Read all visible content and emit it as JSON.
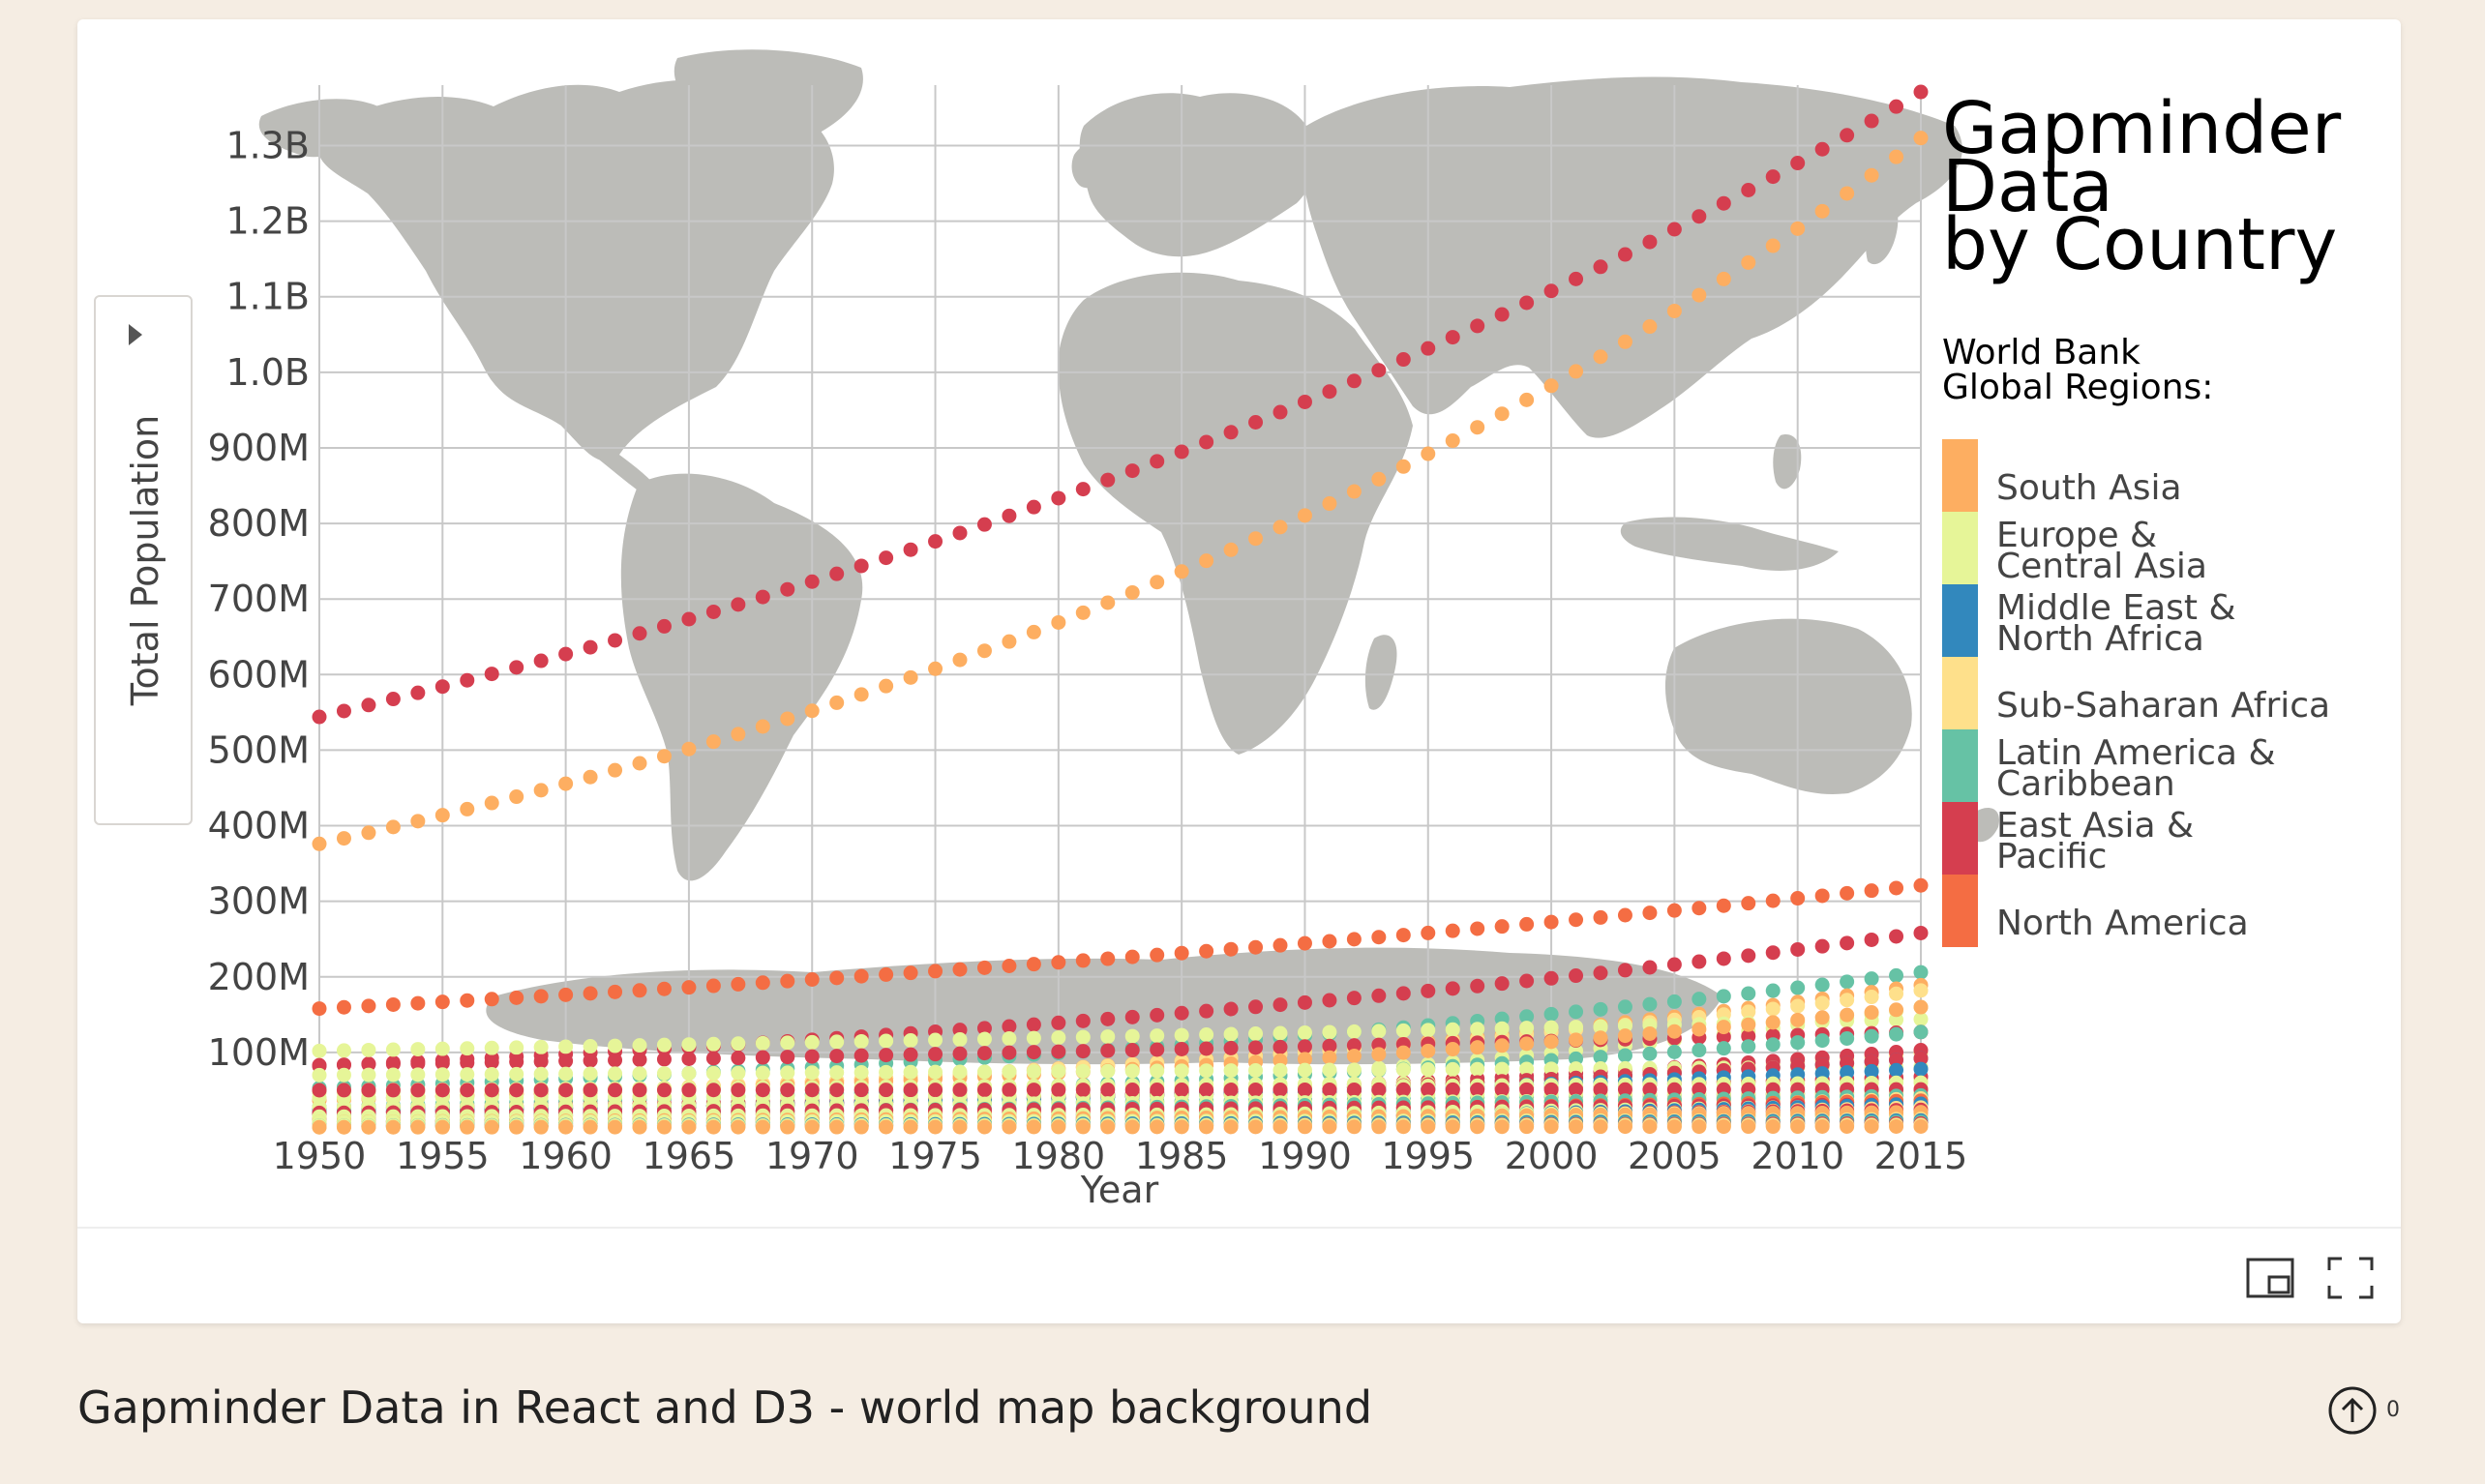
{
  "caption": "Gapminder Data in React and D3 - world map background",
  "upvote_count": "0",
  "icons": {
    "panel_toggle": "caret-right-icon",
    "picture_in_picture": "picture-in-picture-icon",
    "fullscreen": "fullscreen-icon",
    "upvote": "arrow-up-circle-icon"
  },
  "chart_data": {
    "type": "scatter",
    "title": "Gapminder Data by Country",
    "title_lines": [
      "Gapminder",
      "Data",
      "by Country"
    ],
    "legend_title_lines": [
      "World Bank",
      "Global Regions:"
    ],
    "xlabel": "Year",
    "ylabel": "Total Population",
    "xlim": [
      1950,
      2015
    ],
    "ylim": [
      0,
      1380000000
    ],
    "x_ticks": [
      "1950",
      "1955",
      "1960",
      "1965",
      "1970",
      "1975",
      "1980",
      "1985",
      "1990",
      "1995",
      "2000",
      "2005",
      "2010",
      "2015"
    ],
    "y_ticks": [
      {
        "value": 100000000,
        "label": "100M"
      },
      {
        "value": 200000000,
        "label": "200M"
      },
      {
        "value": 300000000,
        "label": "300M"
      },
      {
        "value": 400000000,
        "label": "400M"
      },
      {
        "value": 500000000,
        "label": "500M"
      },
      {
        "value": 600000000,
        "label": "600M"
      },
      {
        "value": 700000000,
        "label": "700M"
      },
      {
        "value": 800000000,
        "label": "800M"
      },
      {
        "value": 900000000,
        "label": "900M"
      },
      {
        "value": 1000000000,
        "label": "1.0B"
      },
      {
        "value": 1100000000,
        "label": "1.1B"
      },
      {
        "value": 1200000000,
        "label": "1.2B"
      },
      {
        "value": 1300000000,
        "label": "1.3B"
      }
    ],
    "grid": true,
    "background": "world map",
    "legend_placement": "right",
    "regions": [
      {
        "label_lines": [
          "South Asia"
        ],
        "color": "#fdae61"
      },
      {
        "label_lines": [
          "Europe &",
          "Central Asia"
        ],
        "color": "#e6f598"
      },
      {
        "label_lines": [
          "Middle East &",
          "North Africa"
        ],
        "color": "#3288bd"
      },
      {
        "label_lines": [
          "Sub-Saharan Africa"
        ],
        "color": "#fee08b"
      },
      {
        "label_lines": [
          "Latin America &",
          "Caribbean"
        ],
        "color": "#66c2a5"
      },
      {
        "label_lines": [
          "East Asia &",
          "Pacific"
        ],
        "color": "#d53e4f"
      },
      {
        "label_lines": [
          "North America"
        ],
        "color": "#f46d43"
      }
    ],
    "series": [
      {
        "region": 5,
        "start": 544000000,
        "end": 1371000000
      },
      {
        "region": 0,
        "start": 376000000,
        "end": 1310000000
      },
      {
        "region": 6,
        "start": 158000000,
        "end": 321000000
      },
      {
        "region": 5,
        "start": 82000000,
        "end": 258000000
      },
      {
        "region": 4,
        "start": 53000000,
        "end": 206000000
      },
      {
        "region": 0,
        "start": 37000000,
        "end": 189000000
      },
      {
        "region": 3,
        "start": 38000000,
        "end": 182000000
      },
      {
        "region": 1,
        "start": 102000000,
        "end": 144000000
      },
      {
        "region": 1,
        "start": 20000000,
        "end": 160000000
      },
      {
        "region": 5,
        "start": 83000000,
        "end": 127000000
      },
      {
        "region": 4,
        "start": 28000000,
        "end": 127000000
      },
      {
        "region": 3,
        "start": 18000000,
        "end": 99000000
      },
      {
        "region": 5,
        "start": 20000000,
        "end": 103000000
      },
      {
        "region": 0,
        "start": 37000000,
        "end": 160000000
      },
      {
        "region": 2,
        "start": 20000000,
        "end": 92000000
      },
      {
        "region": 1,
        "start": 70000000,
        "end": 81000000
      },
      {
        "region": 1,
        "start": 50000000,
        "end": 64000000
      },
      {
        "region": 5,
        "start": 26000000,
        "end": 68000000
      },
      {
        "region": 5,
        "start": 20000000,
        "end": 92000000
      },
      {
        "region": 2,
        "start": 22000000,
        "end": 78000000
      },
      {
        "region": 3,
        "start": 8000000,
        "end": 52000000
      },
      {
        "region": 1,
        "start": 47000000,
        "end": 60000000
      },
      {
        "region": 4,
        "start": 25000000,
        "end": 48000000
      },
      {
        "region": 1,
        "start": 40000000,
        "end": 46000000
      },
      {
        "region": 3,
        "start": 15000000,
        "end": 46000000
      },
      {
        "region": 5,
        "start": 50000000,
        "end": 51000000
      },
      {
        "region": 1,
        "start": 28000000,
        "end": 38000000
      },
      {
        "region": 4,
        "start": 17000000,
        "end": 43000000
      },
      {
        "region": 3,
        "start": 6000000,
        "end": 39000000
      },
      {
        "region": 2,
        "start": 9000000,
        "end": 36000000
      },
      {
        "region": 6,
        "start": 14000000,
        "end": 36000000
      },
      {
        "region": 5,
        "start": 20000000,
        "end": 31000000
      },
      {
        "region": 1,
        "start": 9000000,
        "end": 30000000
      },
      {
        "region": 2,
        "start": 4000000,
        "end": 32000000
      },
      {
        "region": 3,
        "start": 4000000,
        "end": 27000000
      },
      {
        "region": 5,
        "start": 8000000,
        "end": 24000000
      },
      {
        "region": 1,
        "start": 15000000,
        "end": 20000000
      },
      {
        "region": 4,
        "start": 6000000,
        "end": 18000000
      },
      {
        "region": 3,
        "start": 3000000,
        "end": 18000000
      },
      {
        "region": 0,
        "start": 8000000,
        "end": 21000000
      },
      {
        "region": 1,
        "start": 8000000,
        "end": 10000000
      },
      {
        "region": 3,
        "start": 2000000,
        "end": 12000000
      },
      {
        "region": 2,
        "start": 3000000,
        "end": 10000000
      },
      {
        "region": 4,
        "start": 2000000,
        "end": 8000000
      },
      {
        "region": 5,
        "start": 2000000,
        "end": 6000000
      },
      {
        "region": 1,
        "start": 3000000,
        "end": 4000000
      },
      {
        "region": 3,
        "start": 1000000,
        "end": 3000000
      },
      {
        "region": 0,
        "start": 1000000,
        "end": 2000000
      }
    ]
  }
}
